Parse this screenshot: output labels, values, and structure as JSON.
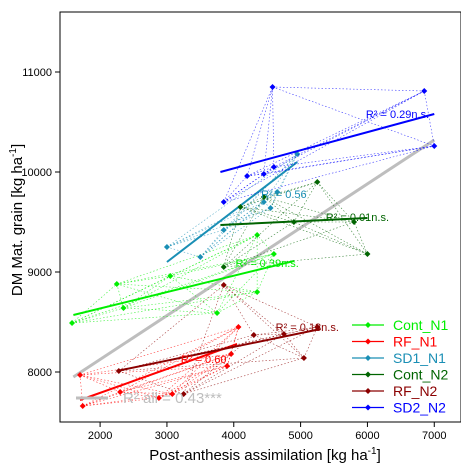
{
  "chart_data": {
    "type": "scatter",
    "xlabel": "Post-anthesis assimilation [kg ha",
    "xlabel_sup": "-1",
    "xlabel_end": "]",
    "ylabel": "DM  Mat. grain [kg ha",
    "ylabel_sup": "-1",
    "ylabel_end": "]",
    "xlim": [
      1400,
      7400
    ],
    "ylim": [
      7500,
      11600
    ],
    "x_ticks": [
      2000,
      3000,
      4000,
      5000,
      6000,
      7000
    ],
    "y_ticks": [
      8000,
      9000,
      10000,
      11000
    ],
    "overall_fit": {
      "label": "R² all = 0.43***",
      "color": "#bebebe",
      "line": [
        [
          1600,
          7950
        ],
        [
          7000,
          10320
        ]
      ]
    },
    "series": [
      {
        "name": "Cont_N1",
        "color": "#00ee00",
        "points": [
          [
            1580,
            8490
          ],
          [
            2250,
            8880
          ],
          [
            2350,
            8640
          ],
          [
            3050,
            8960
          ],
          [
            3750,
            8590
          ],
          [
            4350,
            8800
          ],
          [
            4600,
            9180
          ],
          [
            4350,
            9370
          ]
        ],
        "fit": [
          [
            1600,
            8570
          ],
          [
            4900,
            9110
          ]
        ],
        "r2_label": "R² = 0.39n.s.",
        "r2_pos": [
          4500,
          9090
        ]
      },
      {
        "name": "RF_N1",
        "color": "#ff0000",
        "points": [
          [
            1700,
            7970
          ],
          [
            1740,
            7660
          ],
          [
            2300,
            7800
          ],
          [
            2880,
            7740
          ],
          [
            3080,
            7780
          ],
          [
            3900,
            8060
          ],
          [
            4070,
            8450
          ],
          [
            3960,
            8180
          ]
        ],
        "fit": [
          [
            1700,
            7720
          ],
          [
            4050,
            8280
          ]
        ],
        "r2_label": "R² = 0.60",
        "r2_pos": [
          3550,
          8130
        ]
      },
      {
        "name": "SD1_N1",
        "color": "#1a8fb5",
        "points": [
          [
            3000,
            9250
          ],
          [
            3500,
            9150
          ],
          [
            3850,
            9420
          ],
          [
            4450,
            9700
          ],
          [
            4550,
            9640
          ],
          [
            4950,
            10180
          ],
          [
            4650,
            9800
          ]
        ],
        "fit": [
          [
            3000,
            9100
          ],
          [
            4950,
            10100
          ]
        ],
        "r2_label": "R² = 0.56",
        "r2_pos": [
          4750,
          9780
        ]
      },
      {
        "name": "Cont_N2",
        "color": "#006400",
        "points": [
          [
            3850,
            9050
          ],
          [
            4100,
            9650
          ],
          [
            4450,
            9750
          ],
          [
            5250,
            9900
          ],
          [
            6000,
            9180
          ],
          [
            5800,
            9500
          ],
          [
            4900,
            9500
          ]
        ],
        "fit": [
          [
            3800,
            9470
          ],
          [
            6000,
            9540
          ]
        ],
        "r2_label": "R² = 0.01n.s.",
        "r2_pos": [
          5850,
          9550
        ]
      },
      {
        "name": "RF_N2",
        "color": "#8b0000",
        "points": [
          [
            2280,
            8010
          ],
          [
            3250,
            7780
          ],
          [
            3850,
            8870
          ],
          [
            4300,
            8370
          ],
          [
            5050,
            8140
          ],
          [
            5250,
            8450
          ],
          [
            4750,
            8380
          ]
        ],
        "fit": [
          [
            2250,
            8010
          ],
          [
            5300,
            8430
          ]
        ],
        "r2_label": "R² = 0.18n.s.",
        "r2_pos": [
          5100,
          8450
        ]
      },
      {
        "name": "SD2_N2",
        "color": "#0000ff",
        "points": [
          [
            3850,
            9700
          ],
          [
            4200,
            9960
          ],
          [
            4450,
            9980
          ],
          [
            4580,
            10850
          ],
          [
            6850,
            10810
          ],
          [
            7000,
            10260
          ],
          [
            4600,
            10050
          ]
        ],
        "fit": [
          [
            3800,
            10000
          ],
          [
            7000,
            10580
          ]
        ],
        "r2_label": "R² = 0.29n.s.",
        "r2_pos": [
          6450,
          10580
        ]
      }
    ]
  }
}
